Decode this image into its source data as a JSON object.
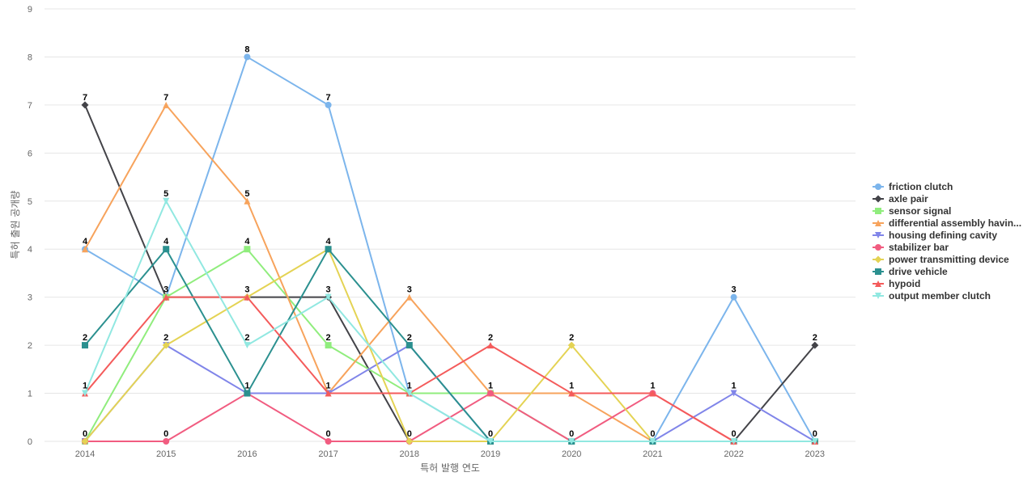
{
  "chart_data": {
    "type": "line",
    "title": "",
    "xlabel": "특허 발행 연도",
    "ylabel": "특허 출원 공개량",
    "x": [
      "2014",
      "2015",
      "2016",
      "2017",
      "2018",
      "2019",
      "2020",
      "2021",
      "2022",
      "2023"
    ],
    "ylim": [
      0,
      9
    ],
    "yticks": [
      0,
      1,
      2,
      3,
      4,
      5,
      6,
      7,
      8,
      9
    ],
    "grid": "horizontal",
    "legend_position": "right",
    "series": [
      {
        "name": "friction clutch",
        "color": "#7cb5ec",
        "marker": "circle",
        "values": [
          4,
          3,
          8,
          7,
          1,
          0,
          0,
          0,
          3,
          0
        ]
      },
      {
        "name": "axle pair",
        "color": "#434348",
        "marker": "diamond",
        "values": [
          7,
          3,
          3,
          3,
          0,
          0,
          0,
          0,
          0,
          2
        ]
      },
      {
        "name": "sensor signal",
        "color": "#90ed7d",
        "marker": "square",
        "values": [
          0,
          3,
          4,
          2,
          1,
          1,
          0,
          0,
          0,
          0
        ]
      },
      {
        "name": "differential assembly havin...",
        "color": "#f7a35c",
        "marker": "triangle",
        "values": [
          4,
          7,
          5,
          1,
          3,
          1,
          1,
          0,
          0,
          0
        ]
      },
      {
        "name": "housing defining cavity",
        "color": "#8085e9",
        "marker": "triangle-down",
        "values": [
          0,
          2,
          1,
          1,
          2,
          0,
          0,
          0,
          1,
          0
        ]
      },
      {
        "name": "stabilizer bar",
        "color": "#f15c80",
        "marker": "circle",
        "values": [
          0,
          0,
          1,
          0,
          0,
          1,
          0,
          1,
          0,
          0
        ]
      },
      {
        "name": "power transmitting device",
        "color": "#e4d354",
        "marker": "diamond",
        "values": [
          0,
          2,
          3,
          4,
          0,
          0,
          2,
          0,
          0,
          0
        ]
      },
      {
        "name": "drive vehicle",
        "color": "#2b908f",
        "marker": "square",
        "values": [
          2,
          4,
          1,
          4,
          2,
          0,
          0,
          0,
          0,
          0
        ]
      },
      {
        "name": "hypoid",
        "color": "#f45b5b",
        "marker": "triangle",
        "values": [
          1,
          3,
          3,
          1,
          1,
          2,
          1,
          1,
          0,
          0
        ]
      },
      {
        "name": "output member clutch",
        "color": "#91e8e1",
        "marker": "triangle-down",
        "values": [
          1,
          5,
          2,
          3,
          1,
          0,
          0,
          0,
          0,
          0
        ]
      }
    ],
    "data_labels": [
      {
        "x": "2014",
        "text": "7",
        "value": 7
      },
      {
        "x": "2014",
        "text": "4",
        "value": 4
      },
      {
        "x": "2014",
        "text": "2",
        "value": 2
      },
      {
        "x": "2014",
        "text": "1",
        "value": 1
      },
      {
        "x": "2014",
        "text": "0",
        "value": 0
      },
      {
        "x": "2015",
        "text": "7",
        "value": 7
      },
      {
        "x": "2015",
        "text": "5",
        "value": 5
      },
      {
        "x": "2015",
        "text": "4",
        "value": 4
      },
      {
        "x": "2015",
        "text": "3",
        "value": 3
      },
      {
        "x": "2015",
        "text": "2",
        "value": 2
      },
      {
        "x": "2015",
        "text": "0",
        "value": 0
      },
      {
        "x": "2016",
        "text": "8",
        "value": 8
      },
      {
        "x": "2016",
        "text": "5",
        "value": 5
      },
      {
        "x": "2016",
        "text": "4",
        "value": 4
      },
      {
        "x": "2016",
        "text": "3",
        "value": 3
      },
      {
        "x": "2016",
        "text": "2",
        "value": 2
      },
      {
        "x": "2016",
        "text": "1",
        "value": 1
      },
      {
        "x": "2017",
        "text": "7",
        "value": 7
      },
      {
        "x": "2017",
        "text": "4",
        "value": 4
      },
      {
        "x": "2017",
        "text": "3",
        "value": 3
      },
      {
        "x": "2017",
        "text": "2",
        "value": 2
      },
      {
        "x": "2017",
        "text": "1",
        "value": 1
      },
      {
        "x": "2017",
        "text": "0",
        "value": 0
      },
      {
        "x": "2018",
        "text": "3",
        "value": 3
      },
      {
        "x": "2018",
        "text": "2",
        "value": 2
      },
      {
        "x": "2018",
        "text": "1",
        "value": 1
      },
      {
        "x": "2018",
        "text": "0",
        "value": 0
      },
      {
        "x": "2019",
        "text": "2",
        "value": 2
      },
      {
        "x": "2019",
        "text": "1",
        "value": 1
      },
      {
        "x": "2019",
        "text": "0",
        "value": 0
      },
      {
        "x": "2020",
        "text": "2",
        "value": 2
      },
      {
        "x": "2020",
        "text": "1",
        "value": 1
      },
      {
        "x": "2020",
        "text": "0",
        "value": 0
      },
      {
        "x": "2021",
        "text": "1",
        "value": 1
      },
      {
        "x": "2021",
        "text": "0",
        "value": 0
      },
      {
        "x": "2022",
        "text": "3",
        "value": 3
      },
      {
        "x": "2022",
        "text": "1",
        "value": 1
      },
      {
        "x": "2022",
        "text": "0",
        "value": 0
      },
      {
        "x": "2023",
        "text": "2",
        "value": 2
      },
      {
        "x": "2023",
        "text": "0",
        "value": 0
      }
    ]
  }
}
